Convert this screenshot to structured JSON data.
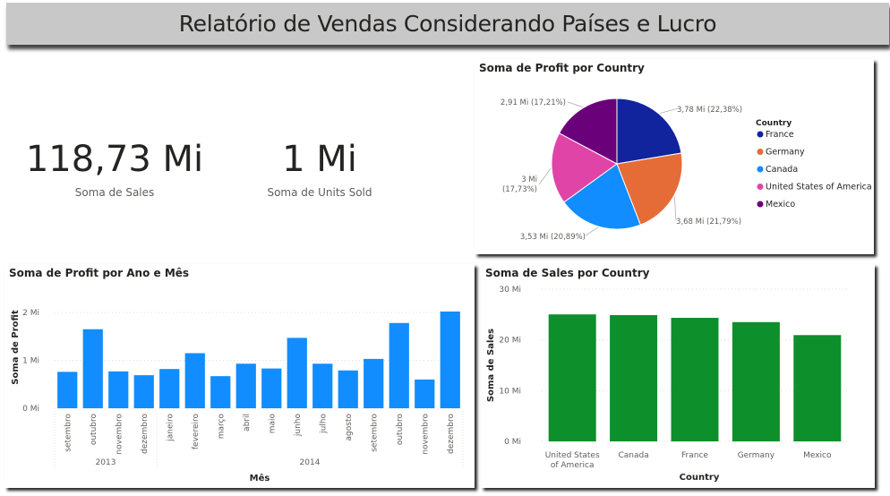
{
  "header": {
    "title": "Relatório de Vendas Considerando Países e Lucro"
  },
  "kpis": {
    "sales": {
      "value": "118,73 Mi",
      "label": "Soma de  Sales"
    },
    "units": {
      "value": "1 Mi",
      "label": "Soma de Units Sold"
    }
  },
  "pie": {
    "title": "Soma de Profit por Country"
  },
  "profit_chart": {
    "title": "Soma de Profit por Ano e Mês"
  },
  "sales_chart": {
    "title": "Soma de Sales por Country"
  },
  "colors": {
    "pie": [
      "#12239e",
      "#e66c37",
      "#118dff",
      "#e044a7",
      "#6b007b"
    ],
    "profit_bar": "#118dff",
    "sales_bar": "#0d8f2c"
  },
  "chart_data": [
    {
      "type": "pie",
      "title": "Soma de Profit por Country",
      "legend_title": "Country",
      "legend_position": "right",
      "slices": [
        {
          "label": "France",
          "value": 3.78,
          "percent": 22.38,
          "display": "3,78 Mi (22,38%)"
        },
        {
          "label": "Germany",
          "value": 3.68,
          "percent": 21.79,
          "display": "3,68 Mi (21,79%)"
        },
        {
          "label": "Canada",
          "value": 3.53,
          "percent": 20.89,
          "display": "3,53 Mi (20,89%)"
        },
        {
          "label": "United States of America",
          "value": 3.0,
          "percent": 17.73,
          "display": [
            "3 Mi",
            "(17,73%)"
          ]
        },
        {
          "label": "Mexico",
          "value": 2.91,
          "percent": 17.21,
          "display": "2,91 Mi (17,21%)"
        }
      ]
    },
    {
      "type": "bar",
      "title": "Soma de Profit por Ano e Mês",
      "xlabel": "Mês",
      "ylabel": "Soma de Profit",
      "ylim": [
        0,
        2
      ],
      "y_ticks": [
        "0 Mi",
        "1 Mi",
        "2 Mi"
      ],
      "y_tick_values": [
        0,
        1,
        2
      ],
      "grid": true,
      "groups": [
        {
          "label": "2013",
          "categories": [
            "setembro",
            "outubro",
            "novembro",
            "dezembro"
          ],
          "values": [
            0.76,
            1.65,
            0.77,
            0.69
          ]
        },
        {
          "label": "2014",
          "categories": [
            "janeiro",
            "fevereiro",
            "março",
            "abril",
            "maio",
            "junho",
            "julho",
            "agosto",
            "setembro",
            "outubro",
            "novembro",
            "dezembro"
          ],
          "values": [
            0.82,
            1.15,
            0.67,
            0.93,
            0.83,
            1.47,
            0.93,
            0.79,
            1.03,
            1.78,
            0.6,
            2.02
          ]
        }
      ]
    },
    {
      "type": "bar",
      "title": "Soma de Sales por Country",
      "xlabel": "Country",
      "ylabel": "Soma de Sales",
      "ylim": [
        0,
        30
      ],
      "y_ticks": [
        "0 Mi",
        "10 Mi",
        "20 Mi",
        "30 Mi"
      ],
      "y_tick_values": [
        0,
        10,
        20,
        30
      ],
      "grid": true,
      "categories": [
        [
          "United States",
          "of America"
        ],
        [
          "Canada"
        ],
        [
          "France"
        ],
        [
          "Germany"
        ],
        [
          "Mexico"
        ]
      ],
      "values": [
        25.03,
        24.89,
        24.35,
        23.51,
        20.95
      ]
    }
  ]
}
